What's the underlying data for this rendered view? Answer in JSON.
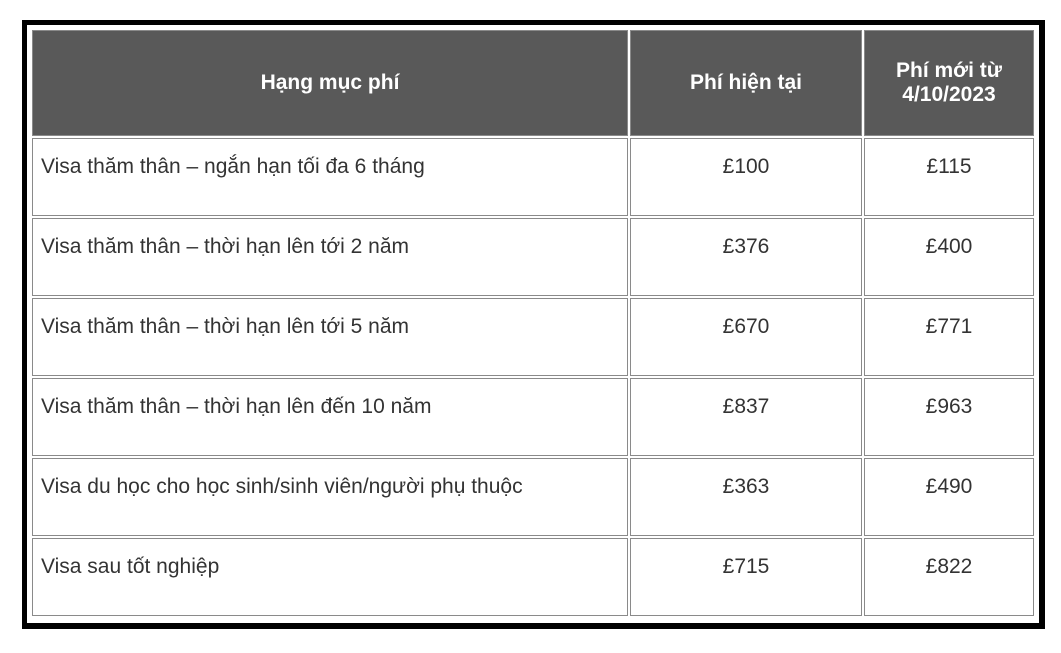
{
  "table": {
    "headers": [
      "Hạng mục phí",
      "Phí hiện tại",
      "Phí mới từ 4/10/2023"
    ],
    "rows": [
      [
        "Visa thăm thân – ngắn hạn tối đa 6 tháng",
        "£100",
        "£115"
      ],
      [
        "Visa thăm thân – thời hạn lên tới 2 năm",
        "£376",
        "£400"
      ],
      [
        "Visa thăm thân – thời hạn lên tới 5 năm",
        "£670",
        "£771"
      ],
      [
        "Visa thăm thân – thời hạn lên đến 10 năm",
        "£837",
        "£963"
      ],
      [
        "Visa du học cho học sinh/sinh viên/người phụ thuộc",
        "£363",
        "£490"
      ],
      [
        "Visa sau tốt nghiệp",
        "£715",
        "£822"
      ]
    ]
  },
  "colors": {
    "header_bg": "#595959",
    "header_text": "#ffffff",
    "border": "#000000"
  }
}
